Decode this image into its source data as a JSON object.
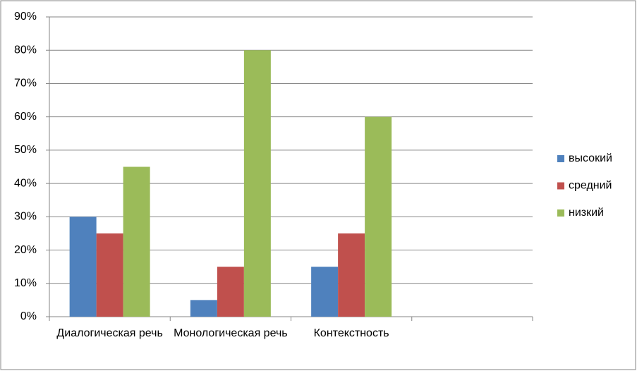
{
  "chart_data": {
    "type": "bar",
    "categories": [
      "Диалогическая речь",
      "Монологическая речь",
      "Контекстность",
      null
    ],
    "series": [
      {
        "name": "высокий",
        "color": "#4f81bd",
        "values": [
          30,
          5,
          15,
          null
        ]
      },
      {
        "name": "средний",
        "color": "#c0504d",
        "values": [
          25,
          15,
          25,
          null
        ]
      },
      {
        "name": "низкий",
        "color": "#9bbb59",
        "values": [
          45,
          80,
          60,
          null
        ]
      }
    ],
    "ylim": [
      0,
      90
    ],
    "yticks": [
      {
        "value": 0,
        "label": "0%"
      },
      {
        "value": 10,
        "label": "10%"
      },
      {
        "value": 20,
        "label": "20%"
      },
      {
        "value": 30,
        "label": "30%"
      },
      {
        "value": 40,
        "label": "40%"
      },
      {
        "value": 50,
        "label": "50%"
      },
      {
        "value": 60,
        "label": "60%"
      },
      {
        "value": 70,
        "label": "70%"
      },
      {
        "value": 80,
        "label": "80%"
      },
      {
        "value": 90,
        "label": "90%"
      }
    ],
    "grid": true,
    "legend": "right"
  }
}
